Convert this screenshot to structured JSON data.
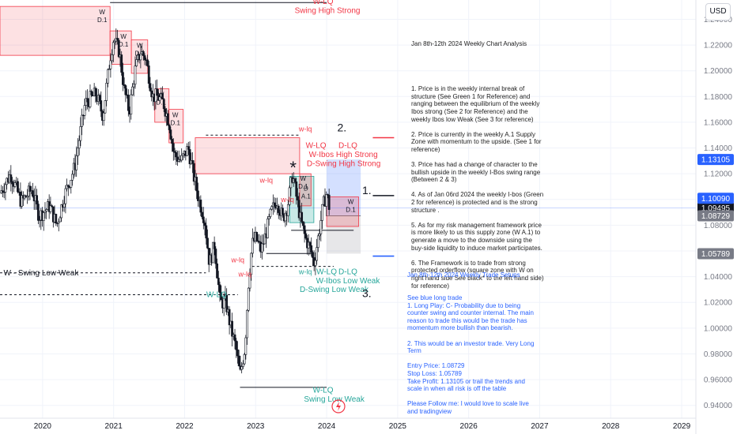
{
  "currency_button": "USD",
  "analysis": {
    "title": "Jan 8th-12th 2024 Weekly Chart Analysis",
    "body": "1. Price is in the weekly internal break of structure (See Green 1 for Reference) and ranging between the equilibrium of the weekly Ibos strong (See 2 for Reference) and the weekly Ibos low Weak (See 3 for reference)\n\n2. Price is currently in the weekly A.1 Supply Zone with momentum to the upside. (See 1 for reference)\n\n3. Price has had a change of character to the bullish upside in the weekly I-Bos swing range (Between 2 & 3)\n\n4. As of Jan 06rd 2024 the weekly I-bos (Green 2 for reference) is protected and is the strong structure .\n\n5. As for my risk management framework price is more likely to us this supply zone (W A.1) to generate a move to the downside using the buy-side liquidity to induce market participates.\n\n6. The Framework is to trade from strong protected orderflow (square zone with W on right hand side See black* to the left hand side) for reference)"
  },
  "setups": {
    "title": "Jan 8th-12th 2024 Weekly Trade Setups",
    "body": "See blue long trade\n1. Long Play: C- Probability due to being counter swing and counter internal. The main reason to trade this would be the trade has momentum more bullish than bearish.\n\n2. This would be an investor trade. Very Long Term\n\nEntry Price: 1.08729\nStop Loss: 1.05789\nTake Profit: 1.13105 or trail the trends and scale in when all risk is off the table\n\nPlease Follow me: I would love to scale live and tradingview"
  },
  "chart_data": {
    "type": "candlestick",
    "symbol_currency": "USD",
    "ylim": [
      0.93,
      1.255
    ],
    "xlim": [
      2019.4,
      2029.2
    ],
    "y_ticks": [
      0.94,
      0.96,
      0.98,
      1.0,
      1.02,
      1.04,
      1.06,
      1.08,
      1.1,
      1.12,
      1.14,
      1.16,
      1.18,
      1.2,
      1.22,
      1.24
    ],
    "y_tick_labels": [
      "0.94000",
      "0.96000",
      "0.98000",
      "1.00000",
      "1.02000",
      "1.04000",
      "1.06000",
      "1.08000",
      "1.10000",
      "1.12000",
      "1.14000",
      "1.16000",
      "1.18000",
      "1.20000",
      "1.22000",
      "1.24000"
    ],
    "x_ticks": [
      2020,
      2021,
      2022,
      2023,
      2024,
      2025,
      2026,
      2027,
      2028,
      2029
    ],
    "x_tick_labels": [
      "2020",
      "2021",
      "2022",
      "2023",
      "2024",
      "2025",
      "2026",
      "2027",
      "2028",
      "2029"
    ],
    "price_path": [
      [
        2019.4,
        1.105
      ],
      [
        2019.55,
        1.12
      ],
      [
        2019.7,
        1.098
      ],
      [
        2019.85,
        1.108
      ],
      [
        2019.95,
        1.087
      ],
      [
        2020.1,
        1.095
      ],
      [
        2020.2,
        1.08
      ],
      [
        2020.3,
        1.102
      ],
      [
        2020.45,
        1.125
      ],
      [
        2020.6,
        1.175
      ],
      [
        2020.75,
        1.182
      ],
      [
        2020.85,
        1.165
      ],
      [
        2020.95,
        1.21
      ],
      [
        2021.0,
        1.225
      ],
      [
        2021.08,
        1.215
      ],
      [
        2021.15,
        1.185
      ],
      [
        2021.22,
        1.168
      ],
      [
        2021.3,
        1.2
      ],
      [
        2021.38,
        1.215
      ],
      [
        2021.45,
        1.21
      ],
      [
        2021.55,
        1.18
      ],
      [
        2021.62,
        1.18
      ],
      [
        2021.7,
        1.175
      ],
      [
        2021.78,
        1.16
      ],
      [
        2021.85,
        1.135
      ],
      [
        2021.95,
        1.13
      ],
      [
        2022.05,
        1.14
      ],
      [
        2022.12,
        1.12
      ],
      [
        2022.2,
        1.1
      ],
      [
        2022.28,
        1.085
      ],
      [
        2022.35,
        1.05
      ],
      [
        2022.42,
        1.065
      ],
      [
        2022.5,
        1.02
      ],
      [
        2022.58,
        1.02
      ],
      [
        2022.65,
        1.0
      ],
      [
        2022.72,
        0.985
      ],
      [
        2022.78,
        0.963
      ],
      [
        2022.85,
        0.985
      ],
      [
        2022.9,
        1.035
      ],
      [
        2022.95,
        1.065
      ],
      [
        2023.0,
        1.07
      ],
      [
        2023.08,
        1.06
      ],
      [
        2023.15,
        1.075
      ],
      [
        2023.22,
        1.09
      ],
      [
        2023.3,
        1.1
      ],
      [
        2023.38,
        1.085
      ],
      [
        2023.45,
        1.095
      ],
      [
        2023.52,
        1.12
      ],
      [
        2023.58,
        1.1
      ],
      [
        2023.63,
        1.085
      ],
      [
        2023.7,
        1.07
      ],
      [
        2023.78,
        1.06
      ],
      [
        2023.82,
        1.05
      ],
      [
        2023.88,
        1.07
      ],
      [
        2023.95,
        1.095
      ],
      [
        2024.0,
        1.105
      ],
      [
        2024.05,
        1.09
      ]
    ],
    "current_price_label": "1.09495",
    "price_tags": [
      {
        "label": "1.13105",
        "value": 1.13105,
        "color": "#2962ff"
      },
      {
        "label": "1.10090",
        "value": 1.1009,
        "color": "#2962ff"
      },
      {
        "label": "1.08729",
        "value": 1.08729,
        "color": "#787b86"
      },
      {
        "label": "1.05789",
        "value": 1.05789,
        "color": "#787b86"
      }
    ],
    "supply_zones": [
      {
        "x": [
          2019.4,
          2020.95
        ],
        "y": [
          1.212,
          1.25
        ],
        "label": [
          "W",
          "D.1"
        ]
      },
      {
        "x": [
          2020.95,
          2021.25
        ],
        "y": [
          1.205,
          1.231
        ],
        "label": [
          "W",
          "D.1"
        ]
      },
      {
        "x": [
          2021.25,
          2021.48
        ],
        "y": [
          1.198,
          1.224
        ],
        "label": [
          "W",
          "D.1"
        ]
      },
      {
        "x": [
          2021.58,
          2021.78
        ],
        "y": [
          1.16,
          1.186
        ],
        "label": [
          "W",
          "D.1"
        ]
      },
      {
        "x": [
          2021.78,
          2021.98
        ],
        "y": [
          1.144,
          1.17
        ],
        "label": [
          "W",
          "D.1"
        ]
      },
      {
        "x": [
          2022.15,
          2023.62
        ],
        "y": [
          1.12,
          1.148
        ],
        "label": []
      }
    ],
    "demand_zone": {
      "x": [
        2023.48,
        2023.82
      ],
      "y": [
        1.082,
        1.118
      ],
      "label": [
        "D",
        "A.1"
      ]
    },
    "inner_zones": [
      {
        "x": [
          2023.62,
          2023.78
        ],
        "y": [
          1.095,
          1.12
        ],
        "label": [
          "W",
          "D.1"
        ]
      },
      {
        "x": [
          2024.0,
          2024.45
        ],
        "y": [
          1.079,
          1.102
        ],
        "label": [
          "W",
          "D.1"
        ]
      }
    ],
    "long_trade": {
      "entry": 1.08729,
      "stop": 1.05789,
      "target": 1.13105,
      "x": [
        2024.0,
        2024.48
      ]
    },
    "structure_lines": [
      {
        "x": [
          2019.4,
          2022.3
        ],
        "y": 1.043,
        "style": "dashed",
        "label": "W - Swing Low Weak",
        "label_x": 2019.45,
        "label_color": "#131722"
      },
      {
        "x": [
          2019.4,
          2022.75
        ],
        "y": 1.026,
        "style": "dashed",
        "label": "",
        "label_x": 0,
        "label_color": ""
      },
      {
        "x": [
          2020.95,
          2024.0
        ],
        "y": 1.253,
        "style": "solid",
        "label": "",
        "label_x": 0,
        "label_color": ""
      },
      {
        "x": [
          2022.78,
          2024.0
        ],
        "y": 0.954,
        "style": "solid",
        "label": "",
        "label_x": 0,
        "label_color": ""
      },
      {
        "x": [
          2022.95,
          2024.1
        ],
        "y": 1.048,
        "style": "dashed",
        "label": "",
        "label_x": 0,
        "label_color": ""
      },
      {
        "x": [
          2022.3,
          2023.62
        ],
        "y": 1.15,
        "style": "dashed",
        "label": "",
        "label_x": 0,
        "label_color": ""
      },
      {
        "x": [
          2023.15,
          2023.8
        ],
        "y": 1.058,
        "style": "solid",
        "label": "",
        "label_x": 0,
        "label_color": ""
      },
      {
        "x": [
          2023.5,
          2024.38
        ],
        "y": 1.076,
        "style": "solid",
        "label": "",
        "label_x": 0,
        "label_color": ""
      }
    ],
    "text_labels": [
      {
        "text": "W-LQ",
        "x": 2023.95,
        "y": 1.252,
        "color": "#f23645",
        "size": 10,
        "anchor": "middle"
      },
      {
        "text": "Swing High Strong",
        "x": 2023.55,
        "y": 1.245,
        "color": "#f23645",
        "size": 10,
        "anchor": "start"
      },
      {
        "text": "w-lq",
        "x": 2023.7,
        "y": 1.153,
        "color": "#f23645",
        "size": 9,
        "anchor": "middle"
      },
      {
        "text": "W-LQ",
        "x": 2023.85,
        "y": 1.14,
        "color": "#f23645",
        "size": 10,
        "anchor": "middle"
      },
      {
        "text": "D-LQ",
        "x": 2024.3,
        "y": 1.14,
        "color": "#f23645",
        "size": 10,
        "anchor": "middle"
      },
      {
        "text": "W-Ibos High Strong",
        "x": 2023.75,
        "y": 1.133,
        "color": "#f23645",
        "size": 10,
        "anchor": "start"
      },
      {
        "text": "D-Swing High Strong",
        "x": 2023.72,
        "y": 1.126,
        "color": "#f23645",
        "size": 10,
        "anchor": "start"
      },
      {
        "text": "w-lq",
        "x": 2023.15,
        "y": 1.113,
        "color": "#f23645",
        "size": 9,
        "anchor": "middle"
      },
      {
        "text": "w-lq",
        "x": 2023.45,
        "y": 1.098,
        "color": "#f23645",
        "size": 9,
        "anchor": "middle"
      },
      {
        "text": "w-lq",
        "x": 2022.75,
        "y": 1.051,
        "color": "#f23645",
        "size": 9,
        "anchor": "middle"
      },
      {
        "text": "w-lq",
        "x": 2022.85,
        "y": 1.04,
        "color": "#f23645",
        "size": 9,
        "anchor": "middle"
      },
      {
        "text": "W-LQ",
        "x": 2022.45,
        "y": 1.024,
        "color": "#26a69a",
        "size": 10,
        "anchor": "middle"
      },
      {
        "text": "w-lq",
        "x": 2023.7,
        "y": 1.042,
        "color": "#26a69a",
        "size": 9,
        "anchor": "middle"
      },
      {
        "text": "W-LQ",
        "x": 2024.0,
        "y": 1.042,
        "color": "#26a69a",
        "size": 10,
        "anchor": "middle"
      },
      {
        "text": "D-LQ",
        "x": 2024.3,
        "y": 1.042,
        "color": "#26a69a",
        "size": 10,
        "anchor": "middle"
      },
      {
        "text": "W-Ibos Low Weak",
        "x": 2023.85,
        "y": 1.035,
        "color": "#26a69a",
        "size": 10,
        "anchor": "start"
      },
      {
        "text": "D-Swing Low Weak",
        "x": 2023.62,
        "y": 1.028,
        "color": "#26a69a",
        "size": 10,
        "anchor": "start"
      },
      {
        "text": "W-LQ",
        "x": 2023.95,
        "y": 0.95,
        "color": "#26a69a",
        "size": 10,
        "anchor": "middle"
      },
      {
        "text": "Swing Low Weak",
        "x": 2023.68,
        "y": 0.943,
        "color": "#26a69a",
        "size": 10,
        "anchor": "start"
      }
    ],
    "markers": [
      {
        "text": "2.",
        "x": 2024.15,
        "y": 1.153,
        "color": "#131722",
        "size": 14
      },
      {
        "text": "1.",
        "x": 2024.5,
        "y": 1.104,
        "color": "#131722",
        "size": 14
      },
      {
        "text": "3.",
        "x": 2024.5,
        "y": 1.024,
        "color": "#131722",
        "size": 14
      },
      {
        "text": "*",
        "x": 2023.48,
        "y": 1.12,
        "color": "#131722",
        "size": 22
      }
    ],
    "ref_lines": [
      {
        "x": [
          2024.65,
          2024.95
        ],
        "y": 1.148,
        "color": "#f23645"
      },
      {
        "x": [
          2024.65,
          2024.95
        ],
        "y": 1.103,
        "color": "#131722"
      },
      {
        "x": [
          2024.65,
          2024.95
        ],
        "y": 1.056,
        "color": "#2962ff"
      }
    ]
  }
}
